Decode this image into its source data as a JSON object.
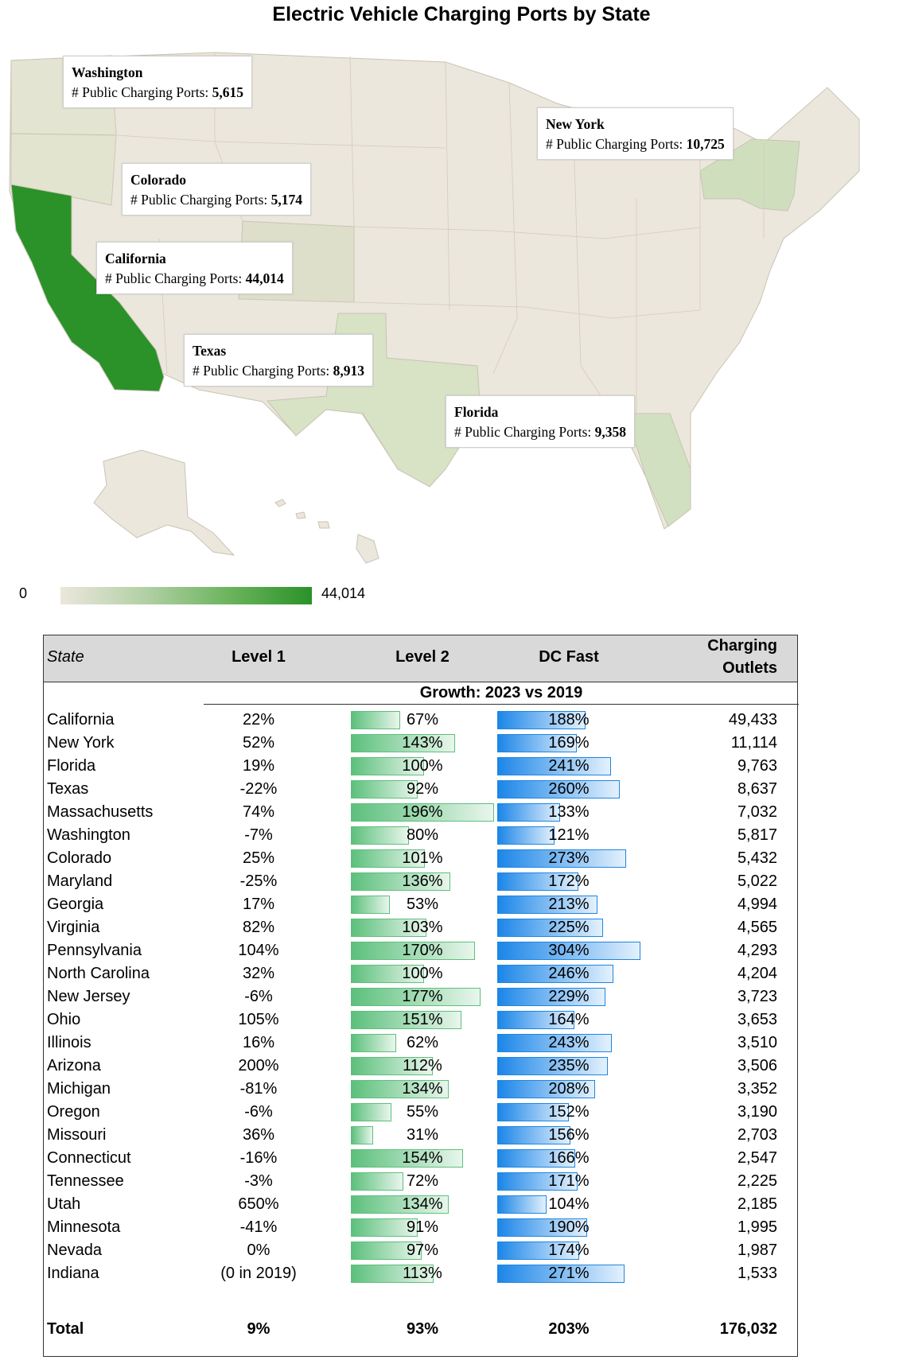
{
  "title": "Electric Vehicle Charging Ports by State",
  "map": {
    "callout_label": "# Public Charging Ports:",
    "legend_min": "0",
    "legend_max": "44,014",
    "color_min": "#ece7dc",
    "color_max": "#2a9228",
    "callouts": [
      {
        "state": "Washington",
        "value": "5,615"
      },
      {
        "state": "New York",
        "value": "10,725"
      },
      {
        "state": "Colorado",
        "value": "5,174"
      },
      {
        "state": "California",
        "value": "44,014"
      },
      {
        "state": "Texas",
        "value": "8,913"
      },
      {
        "state": "Florida",
        "value": "9,358"
      }
    ]
  },
  "table": {
    "headers": {
      "state": "State",
      "level1": "Level 1",
      "level2": "Level 2",
      "dcfast": "DC Fast",
      "outlets_line1": "Charging",
      "outlets_line2": "Outlets"
    },
    "growth_label": "Growth: 2023 vs 2019",
    "total": {
      "label": "Total",
      "level1": "9%",
      "level2": "93%",
      "dcfast": "203%",
      "outlets": "176,032"
    }
  },
  "chart_data": [
    {
      "type": "map",
      "title": "Electric Vehicle Charging Ports by State",
      "value_label": "# Public Charging Ports",
      "color_scale": [
        0,
        44014
      ],
      "labeled_states": [
        {
          "state": "Washington",
          "value": 5615
        },
        {
          "state": "New York",
          "value": 10725
        },
        {
          "state": "Colorado",
          "value": 5174
        },
        {
          "state": "California",
          "value": 44014
        },
        {
          "state": "Texas",
          "value": 8913
        },
        {
          "state": "Florida",
          "value": 9358
        }
      ]
    },
    {
      "type": "table",
      "columns": [
        "State",
        "Level 1",
        "Level 2",
        "DC Fast",
        "Charging Outlets"
      ],
      "level2_bar_max": 196,
      "dcfast_bar_max": 304,
      "rows": [
        {
          "state": "California",
          "level1": "22%",
          "level2": 67,
          "dcfast": 188,
          "outlets": "49,433"
        },
        {
          "state": "New York",
          "level1": "52%",
          "level2": 143,
          "dcfast": 169,
          "outlets": "11,114"
        },
        {
          "state": "Florida",
          "level1": "19%",
          "level2": 100,
          "dcfast": 241,
          "outlets": "9,763"
        },
        {
          "state": "Texas",
          "level1": "-22%",
          "level2": 92,
          "dcfast": 260,
          "outlets": "8,637"
        },
        {
          "state": "Massachusetts",
          "level1": "74%",
          "level2": 196,
          "dcfast": 133,
          "outlets": "7,032"
        },
        {
          "state": "Washington",
          "level1": "-7%",
          "level2": 80,
          "dcfast": 121,
          "outlets": "5,817"
        },
        {
          "state": "Colorado",
          "level1": "25%",
          "level2": 101,
          "dcfast": 273,
          "outlets": "5,432"
        },
        {
          "state": "Maryland",
          "level1": "-25%",
          "level2": 136,
          "dcfast": 172,
          "outlets": "5,022"
        },
        {
          "state": "Georgia",
          "level1": "17%",
          "level2": 53,
          "dcfast": 213,
          "outlets": "4,994"
        },
        {
          "state": "Virginia",
          "level1": "82%",
          "level2": 103,
          "dcfast": 225,
          "outlets": "4,565"
        },
        {
          "state": "Pennsylvania",
          "level1": "104%",
          "level2": 170,
          "dcfast": 304,
          "outlets": "4,293"
        },
        {
          "state": "North Carolina",
          "level1": "32%",
          "level2": 100,
          "dcfast": 246,
          "outlets": "4,204"
        },
        {
          "state": "New Jersey",
          "level1": "-6%",
          "level2": 177,
          "dcfast": 229,
          "outlets": "3,723"
        },
        {
          "state": "Ohio",
          "level1": "105%",
          "level2": 151,
          "dcfast": 164,
          "outlets": "3,653"
        },
        {
          "state": "Illinois",
          "level1": "16%",
          "level2": 62,
          "dcfast": 243,
          "outlets": "3,510"
        },
        {
          "state": "Arizona",
          "level1": "200%",
          "level2": 112,
          "dcfast": 235,
          "outlets": "3,506"
        },
        {
          "state": "Michigan",
          "level1": "-81%",
          "level2": 134,
          "dcfast": 208,
          "outlets": "3,352"
        },
        {
          "state": "Oregon",
          "level1": "-6%",
          "level2": 55,
          "dcfast": 152,
          "outlets": "3,190"
        },
        {
          "state": "Missouri",
          "level1": "36%",
          "level2": 31,
          "dcfast": 156,
          "outlets": "2,703"
        },
        {
          "state": "Connecticut",
          "level1": "-16%",
          "level2": 154,
          "dcfast": 166,
          "outlets": "2,547"
        },
        {
          "state": "Tennessee",
          "level1": "-3%",
          "level2": 72,
          "dcfast": 171,
          "outlets": "2,225"
        },
        {
          "state": "Utah",
          "level1": "650%",
          "level2": 134,
          "dcfast": 104,
          "outlets": "2,185"
        },
        {
          "state": "Minnesota",
          "level1": "-41%",
          "level2": 91,
          "dcfast": 190,
          "outlets": "1,995"
        },
        {
          "state": "Nevada",
          "level1": "0%",
          "level2": 97,
          "dcfast": 174,
          "outlets": "1,987"
        },
        {
          "state": "Indiana",
          "level1": "(0 in 2019)",
          "level2": 113,
          "dcfast": 271,
          "outlets": "1,533"
        }
      ]
    }
  ]
}
